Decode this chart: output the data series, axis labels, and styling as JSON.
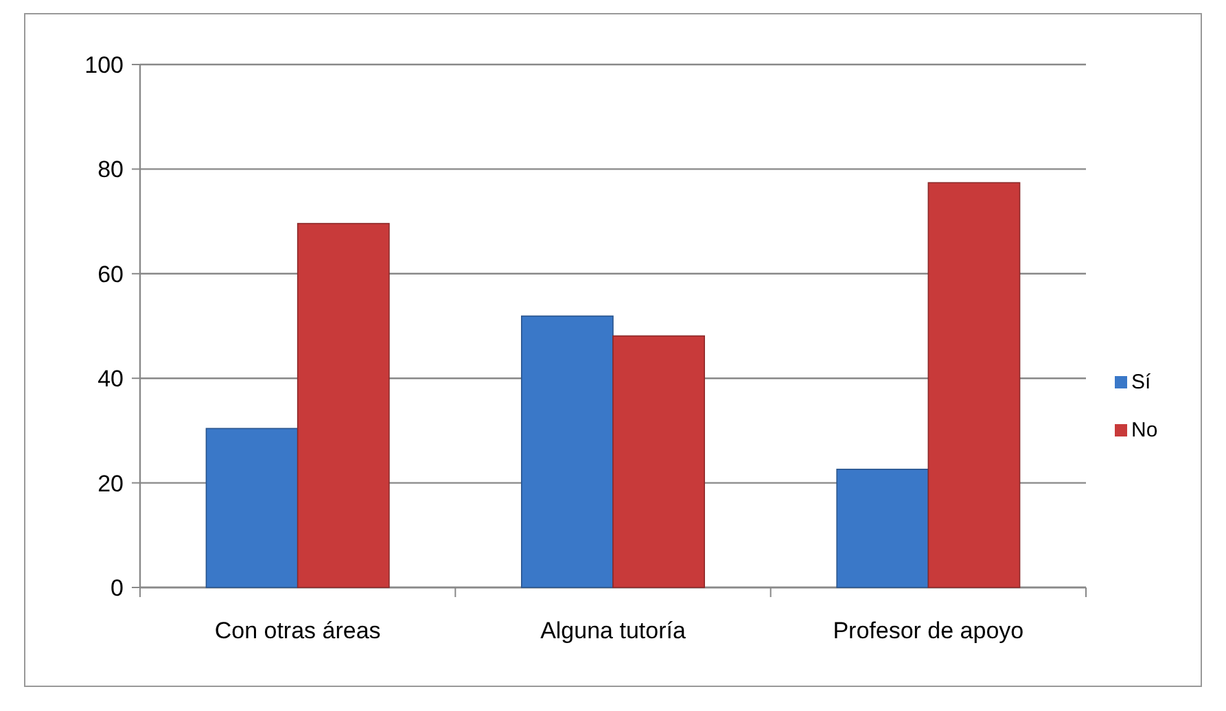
{
  "chart_data": {
    "type": "bar",
    "categories": [
      "Con otras áreas",
      "Alguna tutoría",
      "Profesor de apoyo"
    ],
    "series": [
      {
        "name": "Sí",
        "color": "#3a78c8",
        "values": [
          30.4,
          51.9,
          22.6
        ]
      },
      {
        "name": "No",
        "color": "#c83a3a",
        "values": [
          69.6,
          48.1,
          77.4
        ]
      }
    ],
    "ylim": [
      0,
      100
    ],
    "yticks": [
      0,
      20,
      40,
      60,
      80,
      100
    ],
    "grid": "y",
    "legend": "right"
  }
}
